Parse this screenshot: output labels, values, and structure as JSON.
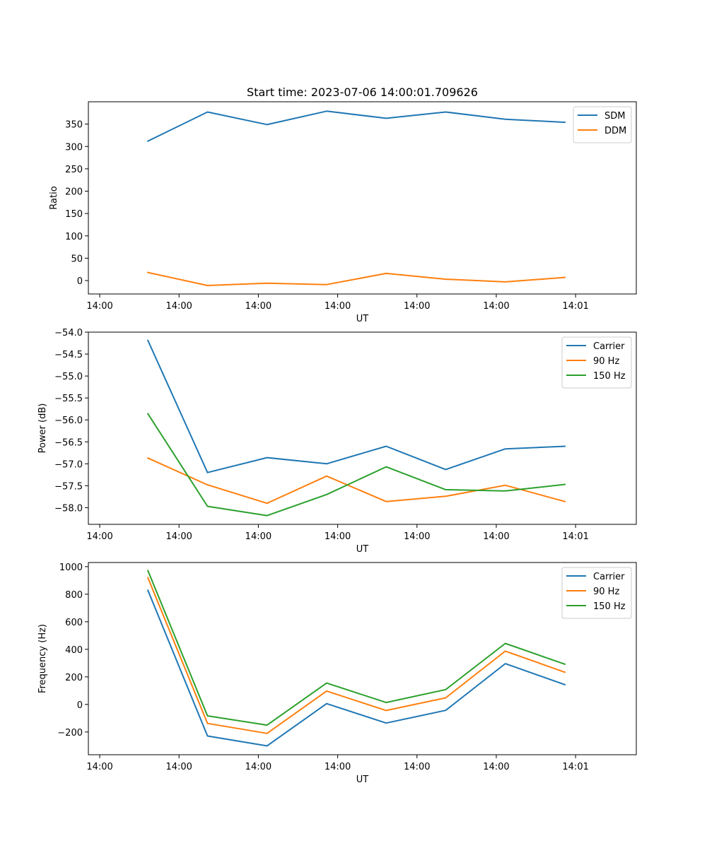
{
  "figure": {
    "title": "Start time: 2023-07-06 14:00:01.709626"
  },
  "chart_data": [
    {
      "type": "line",
      "title": "Start time: 2023-07-06 14:00:01.709626",
      "xlabel": "UT",
      "ylabel": "Ratio",
      "x_ticks": [
        "14:00",
        "14:00",
        "14:00",
        "14:00",
        "14:00",
        "14:00",
        "14:01"
      ],
      "x": [
        1,
        2,
        3,
        4,
        5,
        6,
        7,
        8
      ],
      "xlim": [
        0,
        9.2
      ],
      "ylim": [
        -30,
        400
      ],
      "y_ticks": [
        "0",
        "50",
        "100",
        "150",
        "200",
        "250",
        "300",
        "350"
      ],
      "y_tick_values": [
        0,
        50,
        100,
        150,
        200,
        250,
        300,
        350
      ],
      "legend_position": "upper right",
      "series": [
        {
          "name": "SDM",
          "color": "#1f77b4",
          "values": [
            312,
            377,
            349,
            379,
            363,
            377,
            361,
            354
          ]
        },
        {
          "name": "DDM",
          "color": "#ff7f0e",
          "values": [
            18,
            -11,
            -6,
            -9,
            16,
            3,
            -3,
            7
          ]
        }
      ]
    },
    {
      "type": "line",
      "xlabel": "UT",
      "ylabel": "Power (dB)",
      "x_ticks": [
        "14:00",
        "14:00",
        "14:00",
        "14:00",
        "14:00",
        "14:00",
        "14:01"
      ],
      "x": [
        1,
        2,
        3,
        4,
        5,
        6,
        7,
        8
      ],
      "xlim": [
        0,
        9.2
      ],
      "ylim": [
        -58.38,
        -54.0
      ],
      "y_ticks": [
        "−54.0",
        "−54.5",
        "−55.0",
        "−55.5",
        "−56.0",
        "−56.5",
        "−57.0",
        "−57.5",
        "−58.0"
      ],
      "y_tick_values": [
        -54.0,
        -54.5,
        -55.0,
        -55.5,
        -56.0,
        -56.5,
        -57.0,
        -57.5,
        -58.0
      ],
      "legend_position": "upper right",
      "series": [
        {
          "name": "Carrier",
          "color": "#1f77b4",
          "values": [
            -54.19,
            -57.2,
            -56.86,
            -57.0,
            -56.6,
            -57.13,
            -56.66,
            -56.6
          ]
        },
        {
          "name": "90 Hz",
          "color": "#ff7f0e",
          "values": [
            -56.87,
            -57.48,
            -57.9,
            -57.28,
            -57.86,
            -57.74,
            -57.49,
            -57.86
          ]
        },
        {
          "name": "150 Hz",
          "color": "#2ca02c",
          "values": [
            -55.86,
            -57.97,
            -58.18,
            -57.7,
            -57.07,
            -57.59,
            -57.62,
            -57.47
          ]
        }
      ]
    },
    {
      "type": "line",
      "xlabel": "UT",
      "ylabel": "Frequency (Hz)",
      "x_ticks": [
        "14:00",
        "14:00",
        "14:00",
        "14:00",
        "14:00",
        "14:00",
        "14:01"
      ],
      "x": [
        1,
        2,
        3,
        4,
        5,
        6,
        7,
        8
      ],
      "xlim": [
        0,
        9.2
      ],
      "ylim": [
        -365,
        1030
      ],
      "y_ticks": [
        "−200",
        "0",
        "200",
        "400",
        "600",
        "800",
        "1000"
      ],
      "y_tick_values": [
        -200,
        0,
        200,
        400,
        600,
        800,
        1000
      ],
      "legend_position": "upper right",
      "series": [
        {
          "name": "Carrier",
          "color": "#1f77b4",
          "values": [
            828,
            -229,
            -301,
            6,
            -135,
            -43,
            296,
            143
          ]
        },
        {
          "name": "90 Hz",
          "color": "#ff7f0e",
          "values": [
            919,
            -138,
            -210,
            97,
            -44,
            48,
            387,
            234
          ]
        },
        {
          "name": "150 Hz",
          "color": "#2ca02c",
          "values": [
            971,
            -83,
            -150,
            155,
            14,
            108,
            443,
            292
          ]
        }
      ]
    }
  ]
}
